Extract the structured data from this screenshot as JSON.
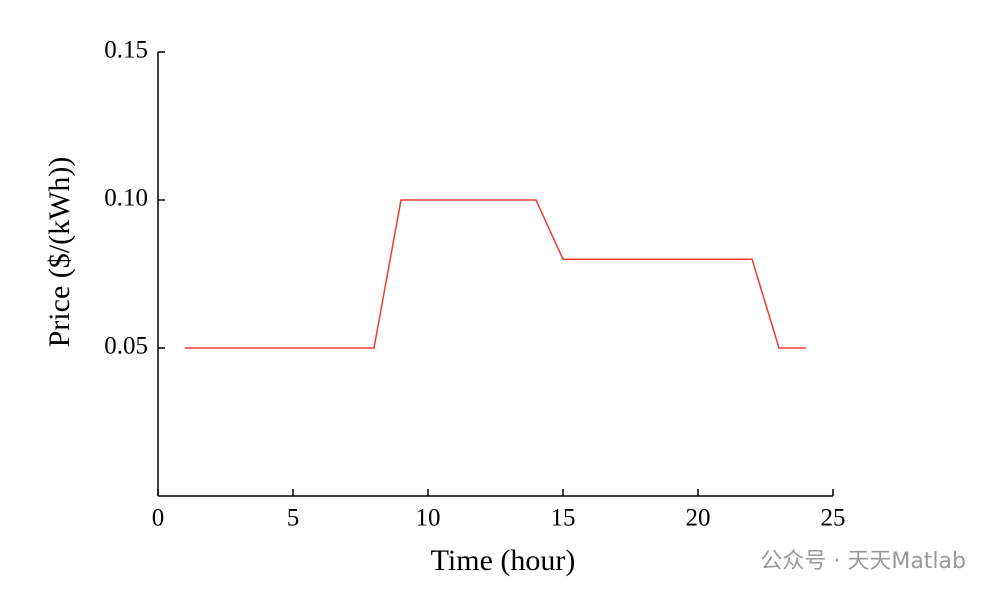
{
  "chart_data": {
    "type": "line",
    "xlabel": "Time (hour)",
    "ylabel": "Price ($/(kWh))",
    "x": [
      1,
      2,
      3,
      4,
      5,
      6,
      7,
      8,
      9,
      10,
      11,
      12,
      13,
      14,
      15,
      16,
      17,
      18,
      19,
      20,
      21,
      22,
      23,
      24
    ],
    "values": [
      0.05,
      0.05,
      0.05,
      0.05,
      0.05,
      0.05,
      0.05,
      0.05,
      0.1,
      0.1,
      0.1,
      0.1,
      0.1,
      0.1,
      0.08,
      0.08,
      0.08,
      0.08,
      0.08,
      0.08,
      0.08,
      0.08,
      0.05,
      0.05
    ],
    "color": "#ee3b2f",
    "xlim": [
      0,
      25
    ],
    "xticks": [
      0,
      5,
      10,
      15,
      20,
      25
    ],
    "ylim": [
      0,
      0.15
    ],
    "yticks": [
      0.05,
      {
        "value": 0.1,
        "label": "0.10"
      },
      0.15
    ],
    "grid": false,
    "watermark": "公众号 · 天天Matlab"
  }
}
